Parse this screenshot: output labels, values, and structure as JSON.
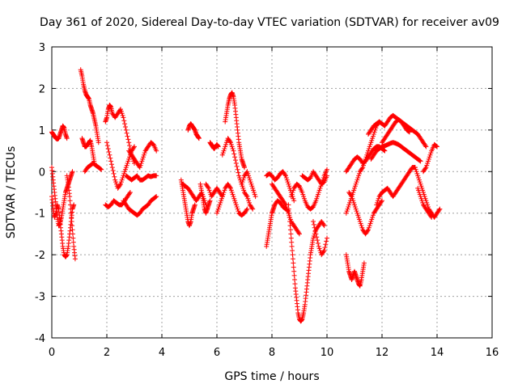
{
  "chart_data": {
    "type": "scatter",
    "title": "Day 361 of 2020, Sidereal Day-to-day VTEC variation (SDTVAR) for receiver av09",
    "xlabel": "GPS time / hours",
    "ylabel": "SDTVAR / TECUs",
    "xlim": [
      0,
      16
    ],
    "ylim": [
      -4,
      3
    ],
    "xticks": [
      0,
      2,
      4,
      6,
      8,
      10,
      12,
      14,
      16
    ],
    "yticks": [
      -4,
      -3,
      -2,
      -1,
      0,
      1,
      2,
      3
    ],
    "grid": true,
    "marker": "+",
    "color": "#ff0000",
    "series": [
      {
        "x": [
          0.0,
          0.05,
          0.1,
          0.15,
          0.2,
          0.25,
          0.3,
          0.35,
          0.4,
          0.45,
          0.5,
          0.55,
          0.6,
          0.65,
          0.7,
          0.75,
          0.8
        ],
        "y": [
          -0.6,
          -0.9,
          -1.1,
          -1.0,
          -0.8,
          -0.9,
          -1.2,
          -1.5,
          -1.8,
          -2.0,
          -2.05,
          -2.0,
          -1.8,
          -1.5,
          -1.2,
          -0.9,
          -0.8
        ]
      },
      {
        "x": [
          0.0,
          0.05,
          0.1,
          0.15,
          0.2,
          0.25,
          0.3,
          0.35,
          0.4,
          0.45,
          0.5,
          0.55,
          0.6,
          0.65,
          0.7,
          0.75
        ],
        "y": [
          0.1,
          -0.2,
          -0.5,
          -0.8,
          -1.1,
          -1.3,
          -1.25,
          -1.1,
          -0.9,
          -0.7,
          -0.5,
          -0.4,
          -0.3,
          -0.2,
          -0.1,
          0.0
        ]
      },
      {
        "x": [
          0.0,
          0.05,
          0.1,
          0.15,
          0.2,
          0.25,
          0.3,
          0.35,
          0.4,
          0.45,
          0.5,
          0.55
        ],
        "y": [
          0.95,
          0.9,
          0.85,
          0.8,
          0.78,
          0.8,
          0.9,
          1.0,
          1.1,
          1.05,
          0.9,
          0.8
        ]
      },
      {
        "x": [
          0.55,
          0.6,
          0.65,
          0.7,
          0.75,
          0.8,
          0.85
        ],
        "y": [
          -0.1,
          -0.3,
          -0.6,
          -1.0,
          -1.4,
          -1.8,
          -2.1
        ]
      },
      {
        "x": [
          1.05,
          1.1,
          1.15,
          1.2,
          1.25,
          1.3,
          1.35,
          1.4,
          1.45,
          1.5,
          1.55,
          1.6,
          1.65,
          1.7
        ],
        "y": [
          2.45,
          2.3,
          2.1,
          1.95,
          1.85,
          1.8,
          1.75,
          1.6,
          1.5,
          1.4,
          1.25,
          1.1,
          0.9,
          0.7
        ]
      },
      {
        "x": [
          1.1,
          1.15,
          1.2,
          1.25,
          1.3,
          1.35,
          1.4,
          1.45,
          1.5,
          1.55
        ],
        "y": [
          0.8,
          0.7,
          0.6,
          0.6,
          0.65,
          0.7,
          0.75,
          0.6,
          0.4,
          0.2
        ]
      },
      {
        "x": [
          1.2,
          1.3,
          1.4,
          1.5,
          1.6,
          1.7,
          1.8
        ],
        "y": [
          0.0,
          0.1,
          0.15,
          0.2,
          0.15,
          0.1,
          0.05
        ]
      },
      {
        "x": [
          1.95,
          2.0,
          2.05,
          2.1,
          2.15,
          2.2,
          2.3,
          2.4,
          2.5,
          2.6,
          2.7,
          2.8,
          2.9,
          3.0
        ],
        "y": [
          1.2,
          1.3,
          1.5,
          1.6,
          1.55,
          1.4,
          1.3,
          1.4,
          1.5,
          1.3,
          1.0,
          0.7,
          0.4,
          0.2
        ]
      },
      {
        "x": [
          1.95,
          2.05,
          2.15,
          2.25,
          2.35,
          2.45,
          2.55,
          2.65,
          2.75,
          2.85
        ],
        "y": [
          -0.8,
          -0.85,
          -0.8,
          -0.7,
          -0.75,
          -0.8,
          -0.8,
          -0.7,
          -0.6,
          -0.5
        ]
      },
      {
        "x": [
          2.0,
          2.1,
          2.2,
          2.3,
          2.4,
          2.5,
          2.6,
          2.7,
          2.8,
          2.9,
          3.0
        ],
        "y": [
          0.7,
          0.4,
          0.1,
          -0.2,
          -0.4,
          -0.3,
          -0.1,
          0.1,
          0.3,
          0.5,
          0.6
        ]
      },
      {
        "x": [
          2.6,
          2.7,
          2.8,
          2.9,
          3.0,
          3.1,
          3.2,
          3.3,
          3.4,
          3.5,
          3.6,
          3.7,
          3.8
        ],
        "y": [
          -0.7,
          -0.8,
          -0.9,
          -0.95,
          -1.0,
          -1.05,
          -1.0,
          -0.9,
          -0.85,
          -0.8,
          -0.7,
          -0.65,
          -0.6
        ]
      },
      {
        "x": [
          2.8,
          2.9,
          3.0,
          3.1,
          3.2,
          3.3,
          3.4,
          3.5,
          3.6,
          3.7,
          3.8
        ],
        "y": [
          0.5,
          0.4,
          0.3,
          0.2,
          0.1,
          0.3,
          0.5,
          0.6,
          0.7,
          0.65,
          0.5
        ]
      },
      {
        "x": [
          2.7,
          2.8,
          2.9,
          3.0,
          3.1,
          3.2,
          3.3,
          3.4,
          3.5,
          3.6,
          3.7,
          3.8
        ],
        "y": [
          -0.1,
          -0.15,
          -0.2,
          -0.15,
          -0.1,
          -0.2,
          -0.2,
          -0.15,
          -0.1,
          -0.12,
          -0.1,
          -0.1
        ]
      },
      {
        "x": [
          4.7,
          4.75,
          4.8,
          4.85,
          4.9,
          4.95,
          5.0,
          5.05,
          5.1,
          5.15,
          5.2
        ],
        "y": [
          -0.2,
          -0.4,
          -0.6,
          -0.8,
          -1.0,
          -1.2,
          -1.3,
          -1.2,
          -1.0,
          -0.9,
          -0.8
        ]
      },
      {
        "x": [
          4.75,
          4.85,
          4.95,
          5.05,
          5.15,
          5.25,
          5.35,
          5.45,
          5.55,
          5.65
        ],
        "y": [
          -0.3,
          -0.35,
          -0.4,
          -0.5,
          -0.6,
          -0.7,
          -0.6,
          -0.5,
          -0.7,
          -0.9
        ]
      },
      {
        "x": [
          4.95,
          5.0,
          5.05,
          5.1,
          5.15,
          5.2,
          5.25,
          5.3,
          5.35
        ],
        "y": [
          1.0,
          1.1,
          1.15,
          1.1,
          1.05,
          1.0,
          0.9,
          0.85,
          0.8
        ]
      },
      {
        "x": [
          5.4,
          5.45,
          5.5,
          5.55,
          5.6,
          5.65,
          5.7,
          5.75
        ],
        "y": [
          -0.3,
          -0.5,
          -0.7,
          -0.9,
          -1.0,
          -0.9,
          -0.8,
          -0.7
        ]
      },
      {
        "x": [
          5.75,
          5.8,
          5.85,
          5.9,
          5.95,
          6.0,
          6.05
        ],
        "y": [
          0.7,
          0.65,
          0.6,
          0.55,
          0.6,
          0.65,
          0.6
        ]
      },
      {
        "x": [
          5.6,
          5.7,
          5.8,
          5.9,
          6.0,
          6.1,
          6.2
        ],
        "y": [
          -0.3,
          -0.4,
          -0.6,
          -0.5,
          -0.4,
          -0.5,
          -0.6
        ]
      },
      {
        "x": [
          6.3,
          6.35,
          6.4,
          6.45,
          6.5,
          6.55,
          6.6,
          6.65,
          6.7,
          6.75,
          6.8,
          6.85,
          6.9,
          6.95,
          7.0
        ],
        "y": [
          1.2,
          1.4,
          1.6,
          1.75,
          1.85,
          1.9,
          1.8,
          1.6,
          1.3,
          1.0,
          0.7,
          0.5,
          0.3,
          0.2,
          0.1
        ]
      },
      {
        "x": [
          6.2,
          6.3,
          6.4,
          6.5,
          6.6,
          6.7,
          6.8,
          6.9,
          7.0,
          7.1,
          7.2,
          7.3
        ],
        "y": [
          0.4,
          0.6,
          0.8,
          0.7,
          0.5,
          0.2,
          -0.1,
          -0.3,
          -0.5,
          -0.6,
          -0.8,
          -0.9
        ]
      },
      {
        "x": [
          6.0,
          6.1,
          6.2,
          6.3,
          6.4,
          6.5,
          6.6,
          6.7,
          6.8,
          6.9,
          7.0,
          7.1
        ],
        "y": [
          -1.0,
          -0.8,
          -0.6,
          -0.4,
          -0.3,
          -0.4,
          -0.6,
          -0.8,
          -1.0,
          -1.05,
          -1.0,
          -0.9
        ]
      },
      {
        "x": [
          6.9,
          7.0,
          7.1,
          7.2,
          7.3,
          7.4
        ],
        "y": [
          -0.3,
          -0.1,
          0.0,
          -0.2,
          -0.4,
          -0.6
        ]
      },
      {
        "x": [
          7.8,
          7.85,
          7.9,
          7.95,
          8.0,
          8.05,
          8.1,
          8.2,
          8.3,
          8.4,
          8.5,
          8.6
        ],
        "y": [
          -1.8,
          -1.6,
          -1.4,
          -1.2,
          -1.0,
          -0.9,
          -0.8,
          -0.7,
          -0.75,
          -0.85,
          -0.9,
          -0.95
        ]
      },
      {
        "x": [
          7.8,
          7.9,
          8.0,
          8.1,
          8.2,
          8.3,
          8.4,
          8.5,
          8.6,
          8.7,
          8.8
        ],
        "y": [
          -0.1,
          -0.05,
          -0.1,
          -0.2,
          -0.15,
          -0.05,
          0.0,
          -0.1,
          -0.3,
          -0.5,
          -0.7
        ]
      },
      {
        "x": [
          8.0,
          8.1,
          8.2,
          8.3,
          8.4,
          8.5,
          8.6,
          8.7,
          8.8,
          8.9,
          9.0
        ],
        "y": [
          -0.3,
          -0.4,
          -0.5,
          -0.6,
          -0.7,
          -0.8,
          -1.0,
          -1.2,
          -1.3,
          -1.4,
          -1.5
        ]
      },
      {
        "x": [
          8.6,
          8.65,
          8.7,
          8.75,
          8.8,
          8.85,
          8.9,
          8.95,
          9.0,
          9.05,
          9.1,
          9.15,
          9.2,
          9.25,
          9.3,
          9.35,
          9.4,
          9.45,
          9.5,
          9.6,
          9.7,
          9.8,
          9.9
        ],
        "y": [
          -0.8,
          -1.2,
          -1.6,
          -2.0,
          -2.4,
          -2.8,
          -3.1,
          -3.4,
          -3.55,
          -3.6,
          -3.55,
          -3.4,
          -3.2,
          -2.9,
          -2.6,
          -2.3,
          -2.0,
          -1.8,
          -1.6,
          -1.4,
          -1.3,
          -1.2,
          -1.3
        ]
      },
      {
        "x": [
          8.7,
          8.8,
          8.9,
          9.0,
          9.1,
          9.2,
          9.3,
          9.4,
          9.5,
          9.6,
          9.7,
          9.8,
          9.9,
          10.0
        ],
        "y": [
          -0.6,
          -0.4,
          -0.3,
          -0.35,
          -0.5,
          -0.7,
          -0.85,
          -0.9,
          -0.85,
          -0.7,
          -0.5,
          -0.3,
          -0.1,
          0.05
        ]
      },
      {
        "x": [
          9.1,
          9.2,
          9.3,
          9.4,
          9.5,
          9.6,
          9.7,
          9.8,
          9.9,
          10.0
        ],
        "y": [
          -0.1,
          -0.15,
          -0.2,
          -0.15,
          0.0,
          -0.1,
          -0.2,
          -0.3,
          -0.25,
          -0.1
        ]
      },
      {
        "x": [
          9.5,
          9.6,
          9.7,
          9.8,
          9.9,
          10.0
        ],
        "y": [
          -1.2,
          -1.5,
          -1.8,
          -2.0,
          -1.9,
          -1.6
        ]
      },
      {
        "x": [
          10.7,
          10.75,
          10.8,
          10.85,
          10.9,
          10.95,
          11.0,
          11.05,
          11.1,
          11.15,
          11.2,
          11.25,
          11.3,
          11.35
        ],
        "y": [
          -2.0,
          -2.2,
          -2.4,
          -2.5,
          -2.6,
          -2.5,
          -2.4,
          -2.5,
          -2.6,
          -2.7,
          -2.75,
          -2.6,
          -2.4,
          -2.2
        ]
      },
      {
        "x": [
          10.7,
          10.8,
          10.9,
          11.0,
          11.1,
          11.2,
          11.3,
          11.4,
          11.5,
          11.6,
          11.7,
          11.8,
          11.9
        ],
        "y": [
          -1.0,
          -0.8,
          -0.6,
          -0.4,
          -0.2,
          0.0,
          0.1,
          0.3,
          0.5,
          0.7,
          0.9,
          1.1,
          1.2
        ]
      },
      {
        "x": [
          10.8,
          10.9,
          11.0,
          11.1,
          11.2,
          11.3,
          11.4,
          11.5,
          11.6,
          11.7,
          11.8,
          11.9,
          12.0
        ],
        "y": [
          -0.5,
          -0.6,
          -0.8,
          -1.0,
          -1.2,
          -1.4,
          -1.5,
          -1.4,
          -1.2,
          -1.0,
          -0.9,
          -0.8,
          -0.7
        ]
      },
      {
        "x": [
          10.7,
          10.8,
          10.9,
          11.0,
          11.1,
          11.2,
          11.3,
          11.4,
          11.5,
          11.6,
          11.7,
          11.8,
          11.9,
          12.0,
          12.1
        ],
        "y": [
          0.0,
          0.1,
          0.2,
          0.3,
          0.35,
          0.3,
          0.2,
          0.25,
          0.35,
          0.45,
          0.55,
          0.6,
          0.6,
          0.55,
          0.5
        ]
      },
      {
        "x": [
          11.5,
          11.6,
          11.7,
          11.8,
          11.9,
          12.0,
          12.1,
          12.2,
          12.3,
          12.4,
          12.5,
          12.6,
          12.7,
          12.8,
          12.9,
          13.0
        ],
        "y": [
          0.9,
          1.0,
          1.1,
          1.15,
          1.2,
          1.15,
          1.1,
          1.2,
          1.3,
          1.35,
          1.3,
          1.25,
          1.2,
          1.1,
          1.0,
          0.95
        ]
      },
      {
        "x": [
          12.0,
          12.1,
          12.2,
          12.3,
          12.4,
          12.5,
          12.6,
          12.7,
          12.8,
          12.9,
          13.0,
          13.1,
          13.2,
          13.3,
          13.4,
          13.5,
          13.6
        ],
        "y": [
          0.7,
          0.8,
          0.9,
          1.0,
          1.1,
          1.2,
          1.25,
          1.2,
          1.15,
          1.1,
          1.05,
          1.0,
          0.95,
          0.9,
          0.8,
          0.7,
          0.6
        ]
      },
      {
        "x": [
          11.6,
          11.7,
          11.8,
          11.9,
          12.0,
          12.1,
          12.2,
          12.3,
          12.4,
          12.5,
          12.6,
          12.7,
          12.8,
          12.9,
          13.0,
          13.1,
          13.2,
          13.3,
          13.4
        ],
        "y": [
          0.3,
          0.4,
          0.5,
          0.55,
          0.6,
          0.62,
          0.65,
          0.68,
          0.7,
          0.68,
          0.65,
          0.6,
          0.55,
          0.5,
          0.45,
          0.4,
          0.35,
          0.3,
          0.25
        ]
      },
      {
        "x": [
          11.8,
          11.9,
          12.0,
          12.1,
          12.2,
          12.3,
          12.4,
          12.5,
          12.6,
          12.7,
          12.8,
          12.9,
          13.0,
          13.1,
          13.2
        ],
        "y": [
          -0.8,
          -0.6,
          -0.5,
          -0.45,
          -0.4,
          -0.5,
          -0.6,
          -0.5,
          -0.4,
          -0.3,
          -0.2,
          -0.1,
          0.0,
          0.1,
          0.1
        ]
      },
      {
        "x": [
          13.2,
          13.3,
          13.4,
          13.5,
          13.6,
          13.7,
          13.8,
          13.9,
          14.0,
          14.1
        ],
        "y": [
          0.1,
          -0.1,
          -0.3,
          -0.5,
          -0.7,
          -0.9,
          -1.0,
          -1.1,
          -1.0,
          -0.9
        ]
      },
      {
        "x": [
          13.5,
          13.6,
          13.7,
          13.8,
          13.9,
          14.0
        ],
        "y": [
          0.0,
          0.1,
          0.3,
          0.5,
          0.65,
          0.6
        ]
      },
      {
        "x": [
          13.3,
          13.4,
          13.5,
          13.6,
          13.7,
          13.8
        ],
        "y": [
          -0.4,
          -0.6,
          -0.8,
          -0.9,
          -1.0,
          -1.1
        ]
      }
    ]
  }
}
